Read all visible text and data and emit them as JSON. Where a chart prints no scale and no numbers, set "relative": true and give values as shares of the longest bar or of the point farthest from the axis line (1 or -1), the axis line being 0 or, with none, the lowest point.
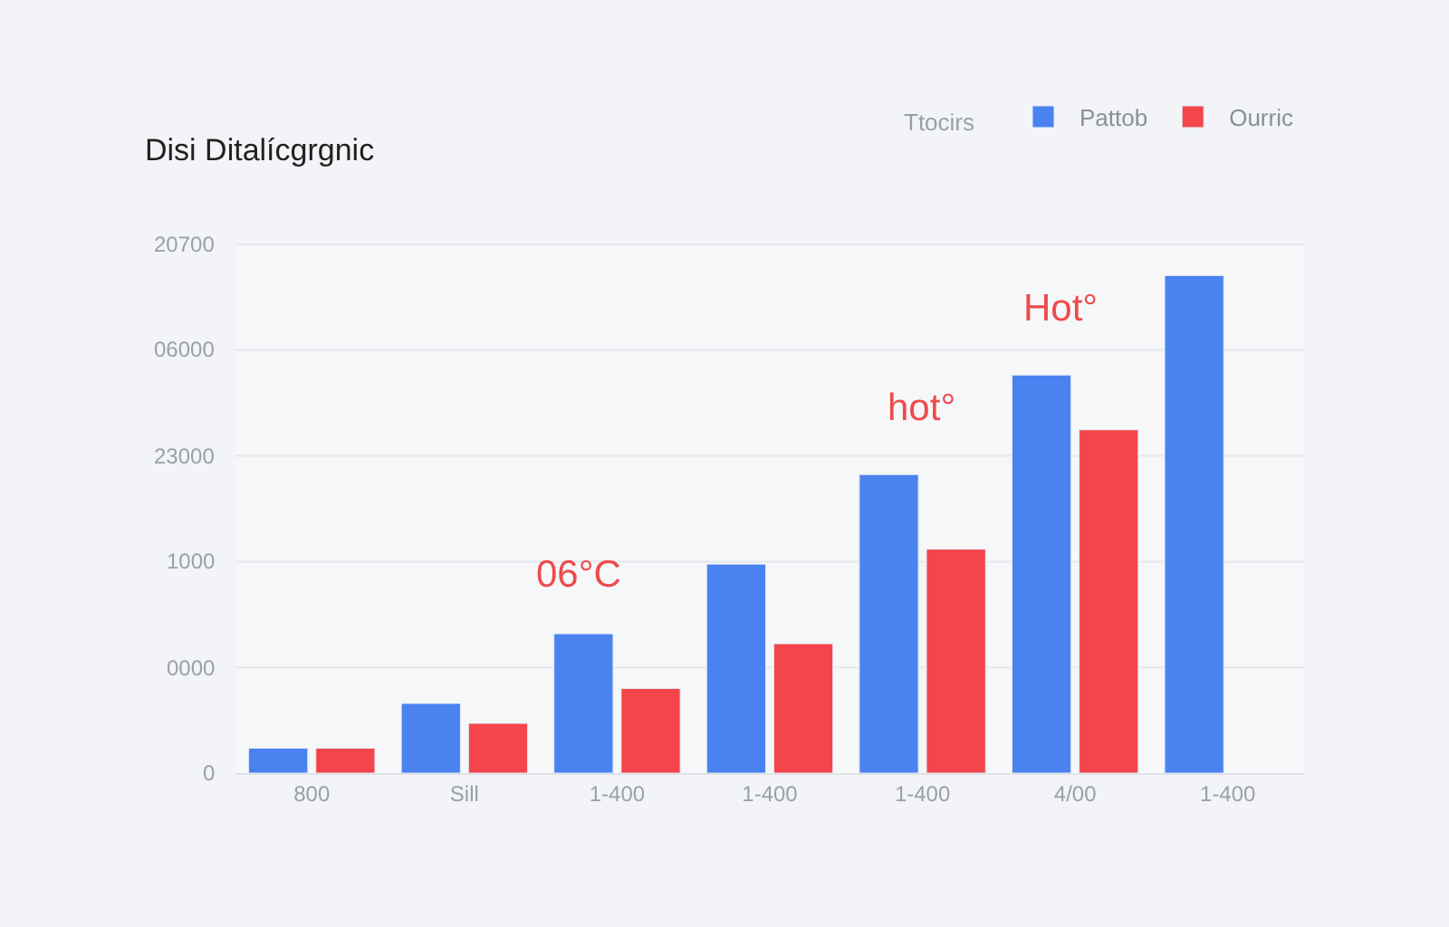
{
  "chart_data": {
    "type": "bar",
    "title": "Disi Ditalícgrgnic",
    "relative": true,
    "categories": [
      "800",
      "Sill",
      "1-400",
      "1-400",
      "1-400",
      "4/00",
      "1-400"
    ],
    "series": [
      {
        "name": "Pattob",
        "color": "#4a82f0",
        "values": [
          0.05,
          0.14,
          0.28,
          0.42,
          0.6,
          0.8,
          1.0
        ]
      },
      {
        "name": "Ourric",
        "color": "#f4454b",
        "values": [
          0.05,
          0.1,
          0.17,
          0.26,
          0.45,
          0.69,
          null
        ]
      }
    ],
    "grid": "y",
    "legend": "top right",
    "annotations": [
      "0",
      "0000",
      "1000",
      "23000",
      "06000",
      "20700",
      "06°C",
      "hot°",
      "Hot°",
      "Ttocirs"
    ]
  }
}
